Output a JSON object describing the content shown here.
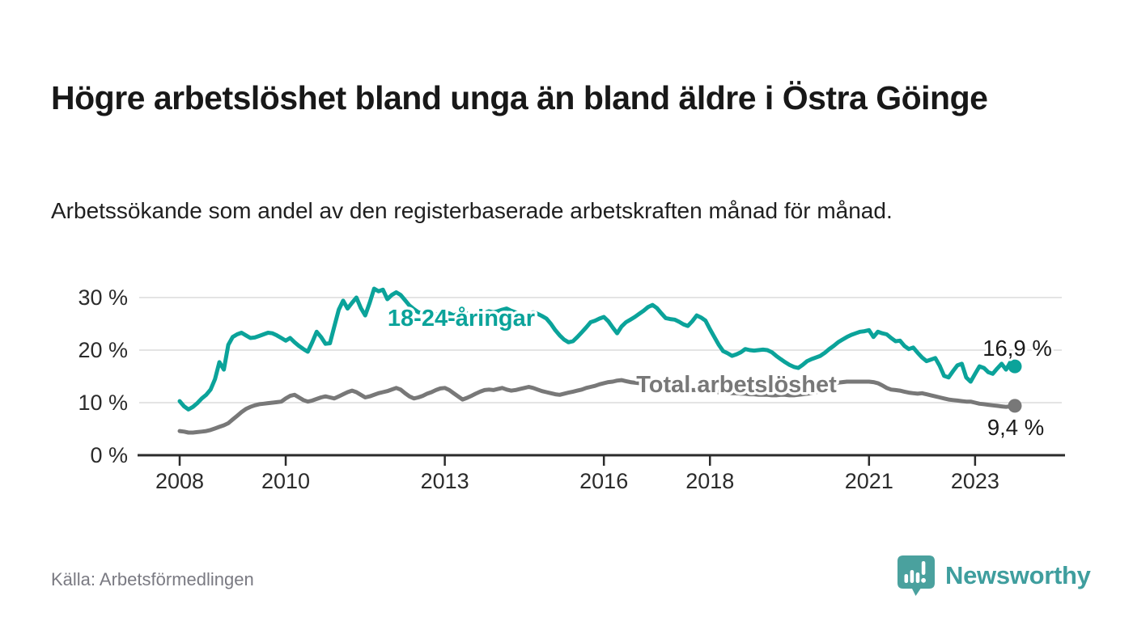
{
  "header": {
    "title": "Högre arbetslöshet bland unga än bland äldre i Östra Göinge",
    "subtitle": "Arbetssökande som andel av den registerbaserade arbetskraften månad för månad."
  },
  "footer": {
    "source": "Källa: Arbetsförmedlingen",
    "brand_name": "Newsworthy"
  },
  "colors": {
    "youth_line": "#0ba39a",
    "total_line": "#787878",
    "grid": "#dcdcdc",
    "axis": "#2b2b2b",
    "tick_text": "#2b2b2b",
    "end_label_text": "#1a1a1a",
    "logo_teal": "#4aa19e",
    "brand_text": "#3f9e9e",
    "source_text": "#7a7a82"
  },
  "chart_data": {
    "type": "line",
    "unit": "%",
    "x_start": "2008-01",
    "x_end": "2023-10",
    "x_monthly": true,
    "ylim": [
      0,
      33
    ],
    "grid": "horizontal",
    "legend_position": "inline-labels",
    "y_ticks": [
      {
        "label": "0 %",
        "value": 0
      },
      {
        "label": "10 %",
        "value": 10
      },
      {
        "label": "20 %",
        "value": 20
      },
      {
        "label": "30 %",
        "value": 30
      }
    ],
    "x_ticks": [
      {
        "label": "2008",
        "month_index": 0
      },
      {
        "label": "2010",
        "month_index": 24
      },
      {
        "label": "2013",
        "month_index": 60
      },
      {
        "label": "2016",
        "month_index": 96
      },
      {
        "label": "2018",
        "month_index": 120
      },
      {
        "label": "2021",
        "month_index": 156
      },
      {
        "label": "2023",
        "month_index": 180
      }
    ],
    "series": [
      {
        "name": "18-24-åringar",
        "color": "#0ba39a",
        "end_label": "16,9 %",
        "last_value": 16.9,
        "values": [
          10.3,
          9.3,
          8.7,
          9.2,
          9.9,
          10.8,
          11.5,
          12.5,
          14.5,
          17.7,
          16.3,
          21.0,
          22.5,
          23.0,
          23.3,
          22.8,
          22.3,
          22.4,
          22.7,
          23.0,
          23.3,
          23.2,
          22.8,
          22.3,
          21.8,
          22.3,
          21.5,
          20.8,
          20.2,
          19.7,
          21.5,
          23.5,
          22.5,
          21.2,
          21.3,
          24.5,
          27.7,
          29.4,
          27.9,
          29.0,
          30.0,
          28.0,
          26.6,
          29.0,
          31.7,
          31.2,
          31.5,
          29.7,
          30.5,
          31.0,
          30.5,
          29.5,
          28.5,
          27.8,
          27.2,
          27.0,
          27.3,
          27.0,
          26.8,
          27.0,
          27.2,
          27.0,
          26.6,
          26.9,
          27.3,
          27.0,
          26.7,
          26.5,
          26.8,
          27.1,
          27.4,
          27.2,
          27.4,
          27.7,
          27.9,
          27.5,
          27.2,
          26.9,
          26.7,
          26.9,
          27.2,
          26.9,
          26.5,
          26.0,
          25.0,
          23.8,
          22.8,
          22.0,
          21.5,
          21.7,
          22.5,
          23.4,
          24.3,
          25.3,
          25.6,
          26.0,
          26.3,
          25.5,
          24.3,
          23.2,
          24.5,
          25.3,
          25.8,
          26.3,
          26.9,
          27.5,
          28.2,
          28.6,
          28.0,
          27.0,
          26.1,
          25.9,
          25.8,
          25.4,
          24.9,
          24.6,
          25.5,
          26.6,
          26.2,
          25.6,
          24.0,
          22.5,
          21.0,
          19.8,
          19.4,
          18.9,
          19.2,
          19.6,
          20.2,
          20.0,
          19.9,
          20.0,
          20.1,
          20.0,
          19.6,
          18.9,
          18.3,
          17.7,
          17.2,
          16.8,
          16.6,
          17.2,
          17.9,
          18.3,
          18.6,
          18.9,
          19.5,
          20.2,
          20.8,
          21.5,
          22.0,
          22.5,
          22.9,
          23.2,
          23.5,
          23.6,
          23.8,
          22.5,
          23.5,
          23.2,
          23.0,
          22.3,
          21.7,
          21.8,
          20.8,
          20.2,
          20.5,
          19.5,
          18.6,
          17.9,
          18.2,
          18.5,
          17.0,
          15.1,
          14.8,
          16.0,
          17.1,
          17.4,
          14.8,
          14.0,
          15.5,
          16.9,
          16.6,
          15.8,
          15.5,
          16.5,
          17.4,
          16.3,
          17.7,
          16.9
        ]
      },
      {
        "name": "Total arbetslöshet",
        "color": "#787878",
        "end_label": "9,4 %",
        "last_value": 9.4,
        "values": [
          4.6,
          4.5,
          4.3,
          4.3,
          4.4,
          4.5,
          4.6,
          4.8,
          5.1,
          5.4,
          5.7,
          6.1,
          6.8,
          7.5,
          8.2,
          8.8,
          9.2,
          9.5,
          9.7,
          9.8,
          9.9,
          10.0,
          10.1,
          10.2,
          10.8,
          11.3,
          11.5,
          11.0,
          10.5,
          10.2,
          10.4,
          10.7,
          11.0,
          11.2,
          11.0,
          10.8,
          11.2,
          11.6,
          12.0,
          12.3,
          12.0,
          11.5,
          11.0,
          11.2,
          11.5,
          11.8,
          12.0,
          12.2,
          12.5,
          12.8,
          12.5,
          11.8,
          11.2,
          10.8,
          11.0,
          11.3,
          11.7,
          12.0,
          12.4,
          12.7,
          12.8,
          12.4,
          11.8,
          11.2,
          10.6,
          10.9,
          11.3,
          11.7,
          12.1,
          12.4,
          12.5,
          12.4,
          12.6,
          12.8,
          12.5,
          12.3,
          12.4,
          12.6,
          12.8,
          13.0,
          12.8,
          12.5,
          12.2,
          12.0,
          11.8,
          11.6,
          11.5,
          11.7,
          11.9,
          12.1,
          12.3,
          12.5,
          12.8,
          13.0,
          13.2,
          13.5,
          13.7,
          13.9,
          14.0,
          14.2,
          14.3,
          14.1,
          13.9,
          13.8,
          13.7,
          13.6,
          13.5,
          13.4,
          13.2,
          13.1,
          13.0,
          12.9,
          12.8,
          12.7,
          12.6,
          12.5,
          12.4,
          12.4,
          12.3,
          12.3,
          12.2,
          12.1,
          12.0,
          11.9,
          11.9,
          11.8,
          11.8,
          11.7,
          11.7,
          11.6,
          11.6,
          11.5,
          11.5,
          11.5,
          11.4,
          11.4,
          11.5,
          11.5,
          11.4,
          11.4,
          11.5,
          11.6,
          11.7,
          11.8,
          12.0,
          12.2,
          12.8,
          13.3,
          13.6,
          13.8,
          13.9,
          14.0,
          14.0,
          14.0,
          14.0,
          14.0,
          14.0,
          13.9,
          13.7,
          13.3,
          12.8,
          12.5,
          12.4,
          12.3,
          12.1,
          11.9,
          11.8,
          11.7,
          11.8,
          11.6,
          11.4,
          11.2,
          11.0,
          10.8,
          10.6,
          10.5,
          10.4,
          10.3,
          10.2,
          10.2,
          10.0,
          9.8,
          9.7,
          9.6,
          9.5,
          9.4,
          9.3,
          9.2,
          9.3,
          9.4
        ]
      }
    ]
  }
}
